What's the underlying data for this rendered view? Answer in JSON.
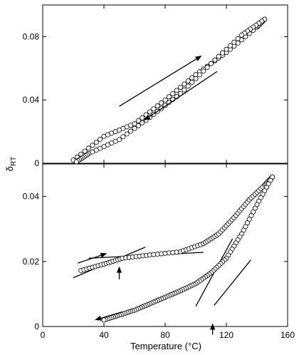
{
  "chart_data": [
    {
      "type": "scatter",
      "panel": "top",
      "xlim": [
        0,
        160
      ],
      "ylim": [
        0,
        0.1
      ],
      "y_ticks": [
        {
          "v": 0,
          "label": "0"
        },
        {
          "v": 0.04,
          "label": "0.04"
        },
        {
          "v": 0.08,
          "label": "0.08"
        }
      ],
      "x_ticks": [
        0,
        40,
        80,
        120,
        160
      ],
      "series": [
        {
          "values": [
            [
              20,
              0.002
            ],
            [
              40,
              0.017
            ],
            [
              60,
              0.025
            ],
            [
              80,
              0.04
            ],
            [
              100,
              0.056
            ],
            [
              120,
              0.07
            ],
            [
              140,
              0.086
            ],
            [
              145,
              0.091
            ]
          ]
        },
        {
          "values": [
            [
              145,
              0.091
            ],
            [
              130,
              0.081
            ],
            [
              110,
              0.063
            ],
            [
              90,
              0.044
            ],
            [
              70,
              0.029
            ],
            [
              50,
              0.015
            ],
            [
              30,
              0.006
            ],
            [
              22,
              0.001
            ]
          ]
        }
      ],
      "arrows": [
        {
          "direction": "heating",
          "from": [
            50,
            0.036
          ],
          "to": [
            104,
            0.068
          ]
        },
        {
          "direction": "cooling",
          "from": [
            114,
            0.058
          ],
          "to": [
            66,
            0.027
          ]
        }
      ]
    },
    {
      "type": "scatter",
      "panel": "bottom",
      "xlabel": "Temperature (°C)",
      "ylabel_main": "δ",
      "ylabel_sub": "RT",
      "xlim": [
        0,
        160
      ],
      "ylim": [
        0,
        0.05
      ],
      "y_ticks": [
        {
          "v": 0,
          "label": "0"
        },
        {
          "v": 0.02,
          "label": "0.02"
        },
        {
          "v": 0.04,
          "label": "0.04"
        }
      ],
      "x_ticks": [
        {
          "v": 0,
          "label": "0"
        },
        {
          "v": 40,
          "label": "40"
        },
        {
          "v": 80,
          "label": "80"
        },
        {
          "v": 120,
          "label": "120"
        },
        {
          "v": 160,
          "label": "160"
        }
      ],
      "series": [
        {
          "values": [
            [
              25,
              0.0172
            ],
            [
              40,
              0.0192
            ],
            [
              52,
              0.021
            ],
            [
              70,
              0.022
            ],
            [
              90,
              0.023
            ],
            [
              105,
              0.0255
            ],
            [
              115,
              0.0285
            ],
            [
              125,
              0.0335
            ],
            [
              135,
              0.039
            ],
            [
              145,
              0.0435
            ],
            [
              150,
              0.046
            ]
          ]
        },
        {
          "values": [
            [
              150,
              0.046
            ],
            [
              140,
              0.0375
            ],
            [
              130,
              0.0285
            ],
            [
              120,
              0.021
            ],
            [
              110,
              0.0165
            ],
            [
              100,
              0.0132
            ],
            [
              90,
              0.011
            ],
            [
              80,
              0.009
            ],
            [
              70,
              0.007
            ],
            [
              60,
              0.005
            ],
            [
              50,
              0.0035
            ],
            [
              40,
              0.002
            ]
          ]
        }
      ],
      "fit_lines": [
        {
          "from": [
            20,
            0.015
          ],
          "to": [
            67,
            0.0244
          ]
        },
        {
          "from": [
            30,
            0.021
          ],
          "to": [
            105,
            0.0228
          ]
        },
        {
          "from": [
            100,
            0.0062
          ],
          "to": [
            124,
            0.027
          ]
        },
        {
          "from": [
            112,
            0.0065
          ],
          "to": [
            136,
            0.0205
          ]
        }
      ],
      "arrows": [
        {
          "direction": "heating",
          "from": [
            23,
            0.0195
          ],
          "to": [
            42,
            0.0225
          ]
        },
        {
          "direction": "cooling",
          "from": [
            52,
            0.0045
          ],
          "to": [
            34,
            0.002
          ]
        },
        {
          "direction": "transition",
          "from": [
            50,
            0.0145
          ],
          "to": [
            50,
            0.0185
          ]
        },
        {
          "direction": "transition",
          "from": [
            111,
            -0.0025
          ],
          "to": [
            111,
            0.001
          ]
        }
      ]
    }
  ]
}
